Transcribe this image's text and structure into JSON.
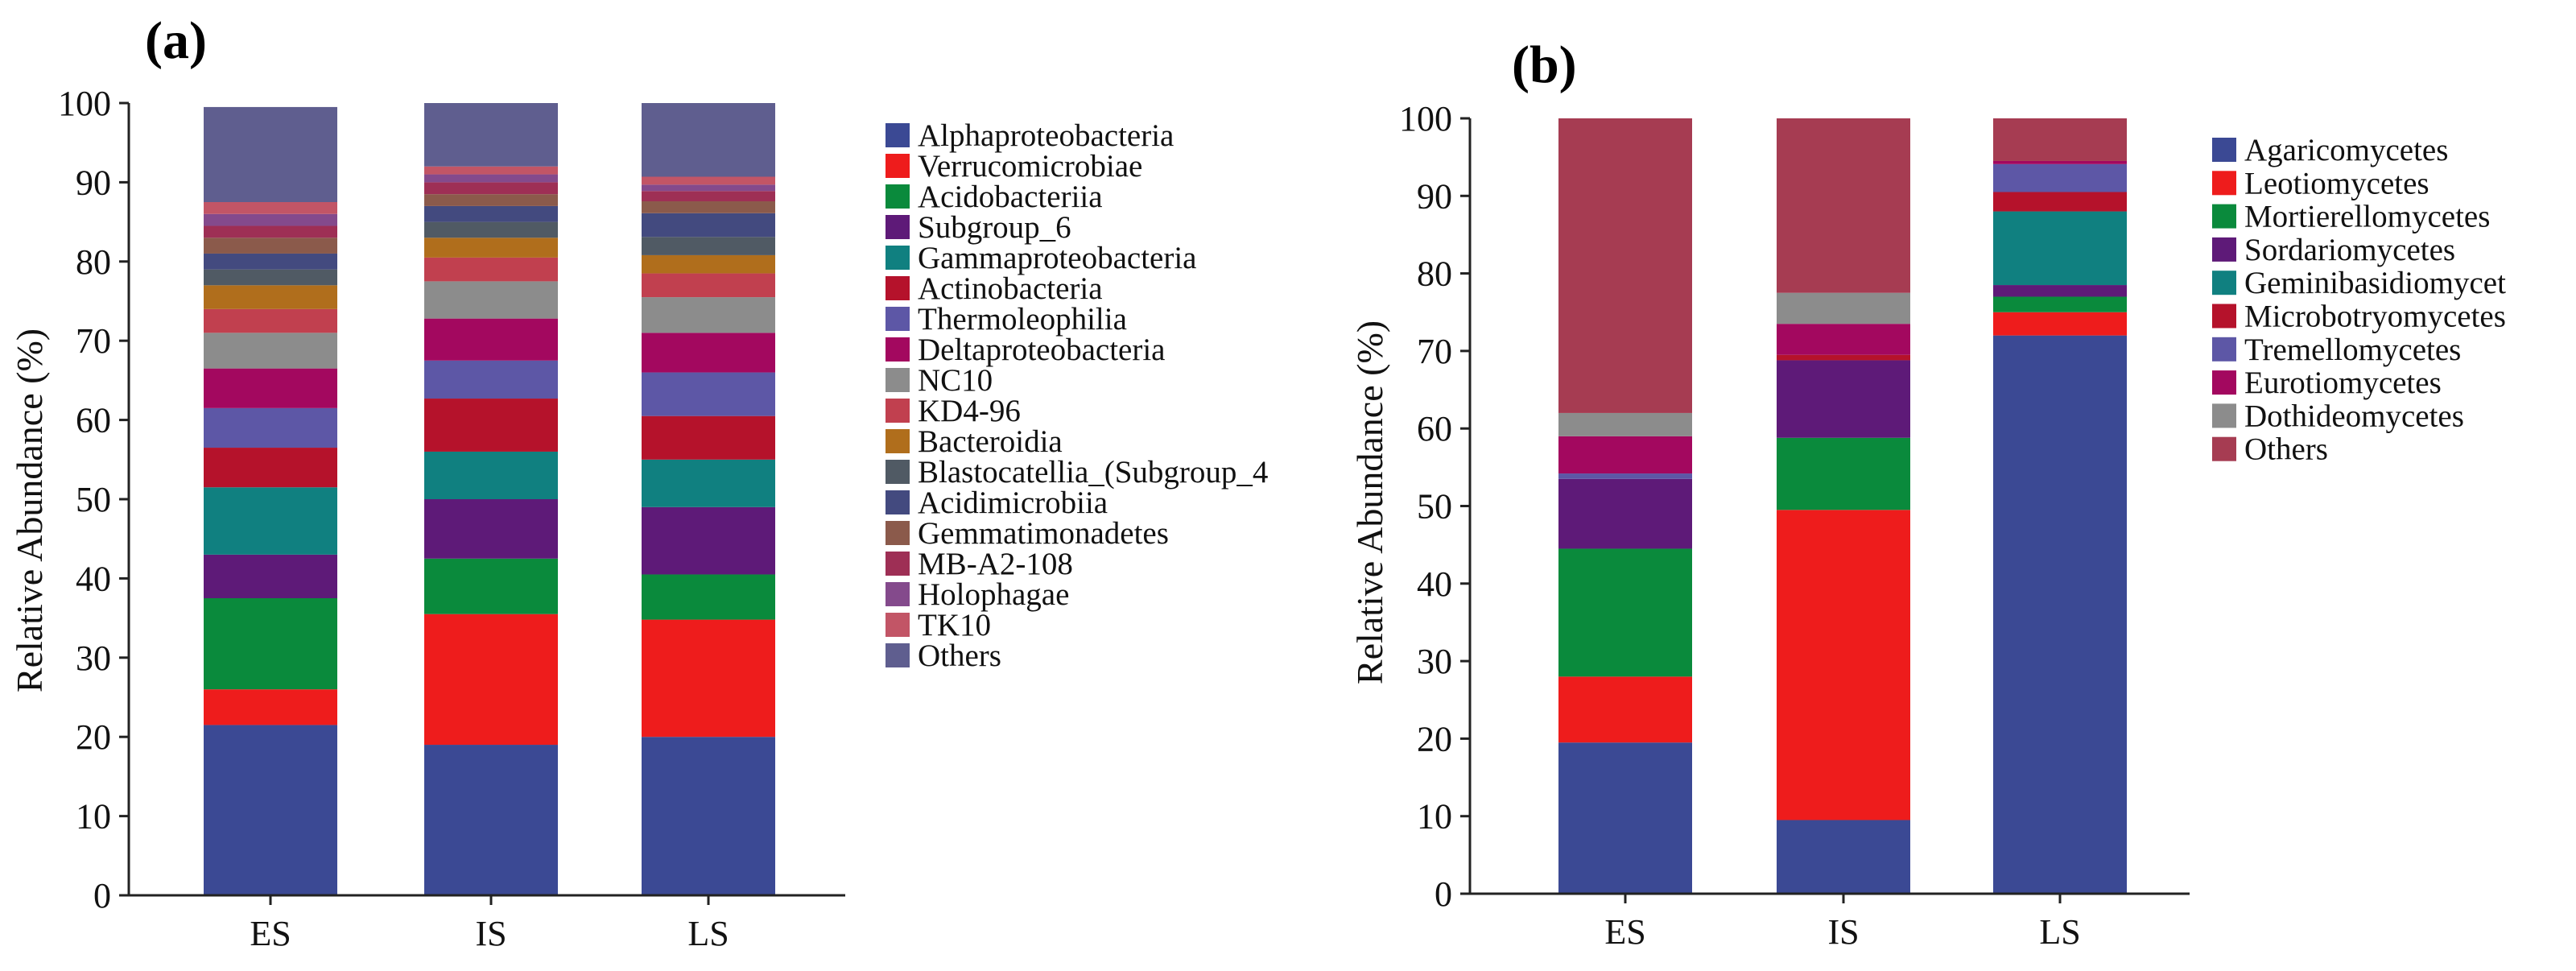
{
  "chart_data": [
    {
      "panel_label": "(a)",
      "type": "bar",
      "stacked": true,
      "categories": [
        "ES",
        "IS",
        "LS"
      ],
      "ylabel": "Relative Abundance (%)",
      "xlabel": "",
      "ylim": [
        0,
        100
      ],
      "yticks": [
        0,
        10,
        20,
        30,
        40,
        50,
        60,
        70,
        80,
        90,
        100
      ],
      "grid": false,
      "legend_position": "right",
      "series": [
        {
          "name": "Alphaproteobacteria",
          "color": "#3b4994",
          "values": [
            21.5,
            19.0,
            20.0
          ]
        },
        {
          "name": "Verrucomicrobiae",
          "color": "#ee1c1c",
          "values": [
            4.5,
            16.5,
            14.8
          ]
        },
        {
          "name": "Acidobacteriia",
          "color": "#0a8a3c",
          "values": [
            11.5,
            7.0,
            5.7
          ]
        },
        {
          "name": "Subgroup_6",
          "color": "#5e1a78",
          "values": [
            5.5,
            7.5,
            8.5
          ]
        },
        {
          "name": "Gammaproteobacteria",
          "color": "#108080",
          "values": [
            8.5,
            6.0,
            6.0
          ]
        },
        {
          "name": "Actinobacteria",
          "color": "#b5122b",
          "values": [
            5.0,
            6.7,
            5.5
          ]
        },
        {
          "name": "Thermoleophilia",
          "color": "#5d57a6",
          "values": [
            5.0,
            4.8,
            5.5
          ]
        },
        {
          "name": "Deltaproteobacteria",
          "color": "#a3085f",
          "values": [
            5.0,
            5.3,
            5.0
          ]
        },
        {
          "name": "NC10",
          "color": "#8c8c8c",
          "values": [
            4.5,
            4.7,
            4.5
          ]
        },
        {
          "name": "KD4-96",
          "color": "#c1404f",
          "values": [
            3.0,
            3.0,
            3.0
          ]
        },
        {
          "name": "Bacteroidia",
          "color": "#b06e1c",
          "values": [
            3.0,
            2.5,
            2.3
          ]
        },
        {
          "name": "Blastocatellia_(Subgroup_4",
          "color": "#505a64",
          "values": [
            2.0,
            2.0,
            2.3
          ]
        },
        {
          "name": "Acidimicrobiia",
          "color": "#434a7f",
          "values": [
            2.0,
            2.0,
            3.0
          ]
        },
        {
          "name": "Gemmatimonadetes",
          "color": "#8b5a4b",
          "values": [
            2.0,
            1.5,
            1.5
          ]
        },
        {
          "name": "MB-A2-108",
          "color": "#9e2f55",
          "values": [
            1.5,
            1.5,
            1.3
          ]
        },
        {
          "name": "Holophagae",
          "color": "#844a8c",
          "values": [
            1.5,
            1.0,
            0.8
          ]
        },
        {
          "name": "TK10",
          "color": "#c25566",
          "values": [
            1.5,
            1.0,
            1.0
          ]
        },
        {
          "name": "Others",
          "color": "#5f5e8f",
          "values": [
            12.0,
            8.0,
            9.3
          ]
        }
      ]
    },
    {
      "panel_label": "(b)",
      "type": "bar",
      "stacked": true,
      "categories": [
        "ES",
        "IS",
        "LS"
      ],
      "ylabel": "Relative Abundance (%)",
      "xlabel": "",
      "ylim": [
        0,
        100
      ],
      "yticks": [
        0,
        10,
        20,
        30,
        40,
        50,
        60,
        70,
        80,
        90,
        100
      ],
      "grid": false,
      "legend_position": "right",
      "series": [
        {
          "name": "Agaricomycetes",
          "color": "#3b4994",
          "values": [
            19.5,
            9.5,
            72.0
          ]
        },
        {
          "name": "Leotiomycetes",
          "color": "#ee1c1c",
          "values": [
            8.5,
            40.0,
            3.0
          ]
        },
        {
          "name": "Mortierellomycetes",
          "color": "#0a8a3c",
          "values": [
            16.5,
            9.3,
            2.0
          ]
        },
        {
          "name": "Sordariomycetes",
          "color": "#5e1a78",
          "values": [
            9.0,
            10.0,
            1.5
          ]
        },
        {
          "name": "Geminibasidiomycet",
          "color": "#108080",
          "values": [
            0.0,
            0.0,
            9.5
          ]
        },
        {
          "name": "Microbotryomycetes",
          "color": "#b5122b",
          "values": [
            0.0,
            0.7,
            2.5
          ]
        },
        {
          "name": "Tremellomycetes",
          "color": "#5d57a6",
          "values": [
            0.7,
            0.0,
            3.6
          ]
        },
        {
          "name": "Eurotiomycetes",
          "color": "#a3085f",
          "values": [
            4.8,
            4.0,
            0.4
          ]
        },
        {
          "name": "Dothideomycetes",
          "color": "#8c8c8c",
          "values": [
            3.0,
            4.0,
            0.0
          ]
        },
        {
          "name": "Others",
          "color": "#a63c52",
          "values": [
            38.0,
            22.5,
            5.5
          ]
        }
      ]
    }
  ]
}
